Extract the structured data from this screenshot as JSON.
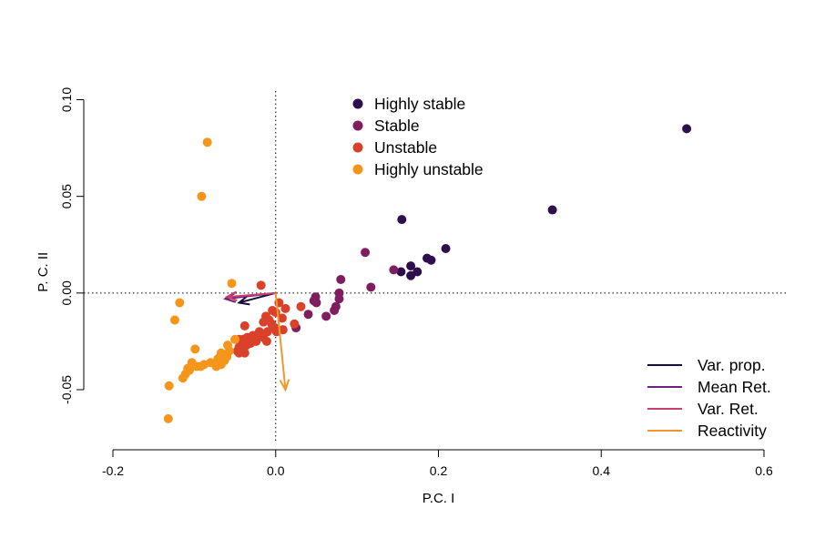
{
  "chart_data": {
    "type": "scatter",
    "title": "",
    "xlabel": "P.C. I",
    "ylabel": "P. C. II",
    "xlim": [
      -0.2,
      0.6
    ],
    "ylim": [
      -0.08,
      0.1
    ],
    "x_ticks": [
      -0.2,
      0.0,
      0.2,
      0.4,
      0.6
    ],
    "x_tick_labels": [
      "-0.2",
      "0.0",
      "0.2",
      "0.4",
      "0.6"
    ],
    "y_ticks": [
      -0.05,
      0.0,
      0.05,
      0.1
    ],
    "y_tick_labels": [
      "-0.05",
      "0.00",
      "0.05",
      "0.10"
    ],
    "grid": false,
    "reference_lines": {
      "x": 0,
      "y": 0,
      "style": "dotted"
    },
    "legend_points_position": "top-center",
    "legend_arrows_position": "bottom-right",
    "series": [
      {
        "name": "Highly stable",
        "color": "#2d0f4e",
        "points": [
          [
            0.505,
            0.085
          ],
          [
            0.34,
            0.043
          ],
          [
            0.155,
            0.038
          ],
          [
            0.209,
            0.023
          ],
          [
            0.186,
            0.018
          ],
          [
            0.191,
            0.017
          ],
          [
            0.166,
            0.014
          ],
          [
            0.154,
            0.011
          ],
          [
            0.174,
            0.011
          ],
          [
            0.166,
            0.009
          ]
        ]
      },
      {
        "name": "Stable",
        "color": "#801d61",
        "points": [
          [
            0.11,
            0.021
          ],
          [
            0.145,
            0.012
          ],
          [
            0.08,
            0.007
          ],
          [
            0.117,
            0.003
          ],
          [
            0.078,
            0.0
          ],
          [
            0.078,
            -0.003
          ],
          [
            0.049,
            -0.002
          ],
          [
            0.047,
            -0.004
          ],
          [
            0.05,
            -0.005
          ],
          [
            0.074,
            -0.007
          ],
          [
            0.072,
            -0.009
          ],
          [
            0.04,
            -0.011
          ],
          [
            0.062,
            -0.012
          ],
          [
            0.025,
            -0.018
          ]
        ]
      },
      {
        "name": "Unstable",
        "color": "#d9412b",
        "points": [
          [
            -0.018,
            0.004
          ],
          [
            0.004,
            -0.005
          ],
          [
            0.031,
            -0.007
          ],
          [
            0.012,
            -0.008
          ],
          [
            -0.004,
            -0.009
          ],
          [
            0.0,
            -0.01
          ],
          [
            -0.012,
            -0.012
          ],
          [
            0.008,
            -0.013
          ],
          [
            -0.008,
            -0.014
          ],
          [
            -0.015,
            -0.015
          ],
          [
            -0.005,
            -0.016
          ],
          [
            -0.038,
            -0.017
          ],
          [
            0.023,
            -0.016
          ],
          [
            -0.001,
            -0.018
          ],
          [
            0.009,
            -0.019
          ],
          [
            -0.02,
            -0.02
          ],
          [
            -0.01,
            -0.02
          ],
          [
            0.001,
            -0.02
          ],
          [
            -0.02,
            -0.021
          ],
          [
            -0.028,
            -0.022
          ],
          [
            -0.015,
            -0.023
          ],
          [
            -0.035,
            -0.023
          ],
          [
            -0.04,
            -0.024
          ],
          [
            -0.045,
            -0.024
          ],
          [
            -0.024,
            -0.025
          ],
          [
            -0.031,
            -0.026
          ],
          [
            -0.041,
            -0.025
          ],
          [
            -0.011,
            -0.025
          ],
          [
            -0.036,
            -0.027
          ],
          [
            -0.045,
            -0.028
          ],
          [
            -0.04,
            -0.029
          ],
          [
            -0.047,
            -0.03
          ],
          [
            -0.038,
            -0.031
          ],
          [
            -0.045,
            -0.031
          ]
        ]
      },
      {
        "name": "Highly unstable",
        "color": "#f5961a",
        "points": [
          [
            -0.084,
            0.078
          ],
          [
            -0.091,
            0.05
          ],
          [
            -0.054,
            0.005
          ],
          [
            -0.118,
            -0.005
          ],
          [
            -0.124,
            -0.014
          ],
          [
            -0.05,
            -0.024
          ],
          [
            -0.059,
            -0.027
          ],
          [
            -0.099,
            -0.029
          ],
          [
            -0.057,
            -0.03
          ],
          [
            -0.067,
            -0.031
          ],
          [
            -0.06,
            -0.033
          ],
          [
            -0.071,
            -0.034
          ],
          [
            -0.063,
            -0.035
          ],
          [
            -0.08,
            -0.036
          ],
          [
            -0.103,
            -0.036
          ],
          [
            -0.088,
            -0.037
          ],
          [
            -0.067,
            -0.037
          ],
          [
            -0.097,
            -0.038
          ],
          [
            -0.092,
            -0.038
          ],
          [
            -0.108,
            -0.039
          ],
          [
            -0.073,
            -0.038
          ],
          [
            -0.106,
            -0.04
          ],
          [
            -0.111,
            -0.042
          ],
          [
            -0.114,
            -0.044
          ],
          [
            -0.131,
            -0.048
          ],
          [
            -0.132,
            -0.065
          ]
        ]
      }
    ],
    "arrows": [
      {
        "name": "Var. prop.",
        "color": "#150e37",
        "from": [
          0.0,
          0.0
        ],
        "to": [
          -0.045,
          -0.005
        ]
      },
      {
        "name": "Mean Ret.",
        "color": "#711f81",
        "from": [
          0.0,
          0.0
        ],
        "to": [
          -0.062,
          -0.003
        ]
      },
      {
        "name": "Var. Ret.",
        "color": "#c6426b",
        "from": [
          0.0,
          0.0
        ],
        "to": [
          -0.06,
          -0.002
        ]
      },
      {
        "name": "Reactivity",
        "color": "#f2972e",
        "from": [
          0.0,
          0.0
        ],
        "to": [
          0.012,
          -0.05
        ]
      }
    ]
  }
}
